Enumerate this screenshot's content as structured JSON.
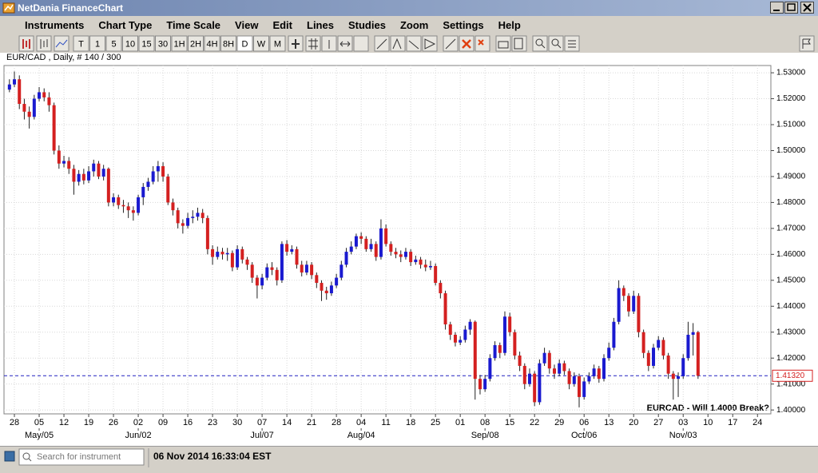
{
  "window": {
    "title": "NetDania FinanceChart"
  },
  "menu": [
    "Instruments",
    "Chart Type",
    "Time Scale",
    "View",
    "Edit",
    "Lines",
    "Studies",
    "Zoom",
    "Settings",
    "Help"
  ],
  "toolbar": {
    "buttons": [
      "T",
      "1",
      "5",
      "10",
      "15",
      "30",
      "1H",
      "2H",
      "4H",
      "8H",
      "D",
      "W",
      "M"
    ]
  },
  "chart_data": {
    "type": "candlestick",
    "header": "EUR/CAD , Daily, # 140 / 300",
    "annotation": "EURCAD - Will 1.4000 Break?",
    "up_color": "#1a1ad0",
    "down_color": "#d42020",
    "grid": true,
    "last_price": {
      "value": 1.4132,
      "label": "1.41320"
    },
    "last_price_color": "#2020c0",
    "ylim": [
      1.3985,
      1.5328
    ],
    "yticks": [
      {
        "value": 1.4,
        "label": "1.40000"
      },
      {
        "value": 1.41,
        "label": "1.41000"
      },
      {
        "value": 1.42,
        "label": "1.42000"
      },
      {
        "value": 1.43,
        "label": "1.43000"
      },
      {
        "value": 1.44,
        "label": "1.44000"
      },
      {
        "value": 1.45,
        "label": "1.45000"
      },
      {
        "value": 1.46,
        "label": "1.46000"
      },
      {
        "value": 1.47,
        "label": "1.47000"
      },
      {
        "value": 1.48,
        "label": "1.48000"
      },
      {
        "value": 1.49,
        "label": "1.49000"
      },
      {
        "value": 1.5,
        "label": "1.50000"
      },
      {
        "value": 1.51,
        "label": "1.51000"
      },
      {
        "value": 1.52,
        "label": "1.52000"
      },
      {
        "value": 1.53,
        "label": "1.53000"
      }
    ],
    "xlim": [
      -1.1,
      153.7
    ],
    "xticks": [
      {
        "value": 1,
        "label": "28"
      },
      {
        "value": 6,
        "label": "05"
      },
      {
        "value": 11,
        "label": "12"
      },
      {
        "value": 16,
        "label": "19"
      },
      {
        "value": 21,
        "label": "26"
      },
      {
        "value": 26,
        "label": "02"
      },
      {
        "value": 31,
        "label": "09"
      },
      {
        "value": 36,
        "label": "16"
      },
      {
        "value": 41,
        "label": "23"
      },
      {
        "value": 46,
        "label": "30"
      },
      {
        "value": 51,
        "label": "07"
      },
      {
        "value": 56,
        "label": "14"
      },
      {
        "value": 61,
        "label": "21"
      },
      {
        "value": 66,
        "label": "28"
      },
      {
        "value": 71,
        "label": "04"
      },
      {
        "value": 76,
        "label": "11"
      },
      {
        "value": 81,
        "label": "18"
      },
      {
        "value": 86,
        "label": "25"
      },
      {
        "value": 91,
        "label": "01"
      },
      {
        "value": 96,
        "label": "08"
      },
      {
        "value": 101,
        "label": "15"
      },
      {
        "value": 106,
        "label": "22"
      },
      {
        "value": 111,
        "label": "29"
      },
      {
        "value": 116,
        "label": "06"
      },
      {
        "value": 121,
        "label": "13"
      },
      {
        "value": 126,
        "label": "20"
      },
      {
        "value": 131,
        "label": "27"
      },
      {
        "value": 136,
        "label": "03"
      },
      {
        "value": 141,
        "label": "10"
      },
      {
        "value": 146,
        "label": "17"
      },
      {
        "value": 151,
        "label": "24"
      }
    ],
    "month_ticks": [
      {
        "value": 6,
        "label": "May/05"
      },
      {
        "value": 26,
        "label": "Jun/02"
      },
      {
        "value": 51,
        "label": "Jul/07"
      },
      {
        "value": 71,
        "label": "Aug/04"
      },
      {
        "value": 96,
        "label": "Sep/08"
      },
      {
        "value": 116,
        "label": "Oct/06"
      },
      {
        "value": 136,
        "label": "Nov/03"
      }
    ],
    "candles": [
      [
        1.5235,
        1.5275,
        1.5225,
        1.5255
      ],
      [
        1.5255,
        1.5305,
        1.5245,
        1.5275
      ],
      [
        1.5275,
        1.529,
        1.516,
        1.518
      ],
      [
        1.518,
        1.52,
        1.512,
        1.515
      ],
      [
        1.515,
        1.517,
        1.5085,
        1.513
      ],
      [
        1.513,
        1.5215,
        1.512,
        1.52
      ],
      [
        1.52,
        1.5245,
        1.519,
        1.5225
      ],
      [
        1.5225,
        1.524,
        1.519,
        1.5205
      ],
      [
        1.5205,
        1.5225,
        1.515,
        1.5175
      ],
      [
        1.5175,
        1.5185,
        1.4985,
        1.5
      ],
      [
        1.5,
        1.502,
        1.493,
        1.495
      ],
      [
        1.495,
        1.498,
        1.4935,
        1.496
      ],
      [
        1.496,
        1.4975,
        1.491,
        1.493
      ],
      [
        1.493,
        1.4945,
        1.483,
        1.488
      ],
      [
        1.488,
        1.4925,
        1.4865,
        1.491
      ],
      [
        1.491,
        1.493,
        1.487,
        1.4885
      ],
      [
        1.4885,
        1.494,
        1.4875,
        1.492
      ],
      [
        1.492,
        1.4965,
        1.49,
        1.495
      ],
      [
        1.495,
        1.496,
        1.489,
        1.49
      ],
      [
        1.49,
        1.4945,
        1.4885,
        1.493
      ],
      [
        1.493,
        1.4935,
        1.4785,
        1.48
      ],
      [
        1.48,
        1.4835,
        1.4785,
        1.482
      ],
      [
        1.482,
        1.483,
        1.4775,
        1.479
      ],
      [
        1.479,
        1.481,
        1.476,
        1.4785
      ],
      [
        1.4785,
        1.48,
        1.474,
        1.477
      ],
      [
        1.477,
        1.4785,
        1.473,
        1.476
      ],
      [
        1.476,
        1.483,
        1.475,
        1.482
      ],
      [
        1.482,
        1.4875,
        1.479,
        1.486
      ],
      [
        1.486,
        1.4895,
        1.4845,
        1.488
      ],
      [
        1.488,
        1.494,
        1.487,
        1.492
      ],
      [
        1.492,
        1.496,
        1.488,
        1.494
      ],
      [
        1.494,
        1.4955,
        1.488,
        1.49
      ],
      [
        1.49,
        1.491,
        1.479,
        1.48
      ],
      [
        1.48,
        1.4815,
        1.475,
        1.477
      ],
      [
        1.477,
        1.478,
        1.47,
        1.472
      ],
      [
        1.472,
        1.4735,
        1.468,
        1.471
      ],
      [
        1.471,
        1.476,
        1.47,
        1.474
      ],
      [
        1.474,
        1.477,
        1.472,
        1.4745
      ],
      [
        1.4745,
        1.478,
        1.473,
        1.476
      ],
      [
        1.476,
        1.4775,
        1.472,
        1.474
      ],
      [
        1.474,
        1.475,
        1.46,
        1.462
      ],
      [
        1.462,
        1.4635,
        1.456,
        1.459
      ],
      [
        1.459,
        1.463,
        1.458,
        1.461
      ],
      [
        1.461,
        1.4625,
        1.458,
        1.46
      ],
      [
        1.46,
        1.4625,
        1.4575,
        1.4605
      ],
      [
        1.4605,
        1.4615,
        1.4535,
        1.455
      ],
      [
        1.455,
        1.4635,
        1.454,
        1.462
      ],
      [
        1.462,
        1.463,
        1.4565,
        1.458
      ],
      [
        1.458,
        1.459,
        1.454,
        1.456
      ],
      [
        1.456,
        1.457,
        1.449,
        1.451
      ],
      [
        1.451,
        1.452,
        1.443,
        1.448
      ],
      [
        1.448,
        1.4525,
        1.4465,
        1.451
      ],
      [
        1.451,
        1.4565,
        1.45,
        1.455
      ],
      [
        1.455,
        1.457,
        1.452,
        1.454
      ],
      [
        1.454,
        1.455,
        1.448,
        1.45
      ],
      [
        1.45,
        1.465,
        1.449,
        1.464
      ],
      [
        1.464,
        1.4655,
        1.4595,
        1.461
      ],
      [
        1.461,
        1.4635,
        1.46,
        1.462
      ],
      [
        1.462,
        1.463,
        1.4545,
        1.456
      ],
      [
        1.456,
        1.4575,
        1.4515,
        1.453
      ],
      [
        1.453,
        1.4575,
        1.452,
        1.456
      ],
      [
        1.456,
        1.457,
        1.4505,
        1.452
      ],
      [
        1.452,
        1.453,
        1.447,
        1.449
      ],
      [
        1.449,
        1.45,
        1.442,
        1.446
      ],
      [
        1.446,
        1.4475,
        1.4425,
        1.445
      ],
      [
        1.445,
        1.4495,
        1.444,
        1.448
      ],
      [
        1.448,
        1.4525,
        1.447,
        1.451
      ],
      [
        1.451,
        1.4575,
        1.45,
        1.456
      ],
      [
        1.456,
        1.4625,
        1.455,
        1.461
      ],
      [
        1.461,
        1.465,
        1.46,
        1.463
      ],
      [
        1.463,
        1.468,
        1.462,
        1.467
      ],
      [
        1.467,
        1.4685,
        1.464,
        1.466
      ],
      [
        1.466,
        1.467,
        1.461,
        1.462
      ],
      [
        1.462,
        1.466,
        1.461,
        1.464
      ],
      [
        1.464,
        1.465,
        1.4575,
        1.459
      ],
      [
        1.459,
        1.4735,
        1.458,
        1.47
      ],
      [
        1.47,
        1.4715,
        1.463,
        1.464
      ],
      [
        1.464,
        1.465,
        1.4595,
        1.461
      ],
      [
        1.461,
        1.4625,
        1.4585,
        1.46
      ],
      [
        1.46,
        1.4615,
        1.457,
        1.459
      ],
      [
        1.459,
        1.4625,
        1.458,
        1.461
      ],
      [
        1.461,
        1.462,
        1.4555,
        1.457
      ],
      [
        1.457,
        1.4595,
        1.456,
        1.458
      ],
      [
        1.458,
        1.459,
        1.4545,
        1.456
      ],
      [
        1.456,
        1.458,
        1.4535,
        1.455
      ],
      [
        1.455,
        1.4575,
        1.454,
        1.4555
      ],
      [
        1.4555,
        1.4565,
        1.448,
        1.449
      ],
      [
        1.449,
        1.45,
        1.443,
        1.445
      ],
      [
        1.445,
        1.446,
        1.431,
        1.433
      ],
      [
        1.433,
        1.434,
        1.427,
        1.429
      ],
      [
        1.429,
        1.43,
        1.4245,
        1.426
      ],
      [
        1.426,
        1.4285,
        1.425,
        1.427
      ],
      [
        1.427,
        1.4325,
        1.426,
        1.431
      ],
      [
        1.431,
        1.435,
        1.429,
        1.434
      ],
      [
        1.434,
        1.4345,
        1.404,
        1.412
      ],
      [
        1.412,
        1.4135,
        1.406,
        1.408
      ],
      [
        1.408,
        1.4135,
        1.407,
        1.412
      ],
      [
        1.412,
        1.4215,
        1.411,
        1.42
      ],
      [
        1.42,
        1.4265,
        1.419,
        1.425
      ],
      [
        1.425,
        1.426,
        1.42,
        1.422
      ],
      [
        1.422,
        1.438,
        1.421,
        1.436
      ],
      [
        1.436,
        1.4375,
        1.4285,
        1.43
      ],
      [
        1.43,
        1.431,
        1.4195,
        1.421
      ],
      [
        1.421,
        1.4225,
        1.415,
        1.417
      ],
      [
        1.417,
        1.418,
        1.408,
        1.41
      ],
      [
        1.41,
        1.416,
        1.409,
        1.414
      ],
      [
        1.414,
        1.415,
        1.4015,
        1.403
      ],
      [
        1.403,
        1.4195,
        1.402,
        1.418
      ],
      [
        1.418,
        1.424,
        1.417,
        1.422
      ],
      [
        1.422,
        1.423,
        1.414,
        1.416
      ],
      [
        1.416,
        1.4175,
        1.412,
        1.414
      ],
      [
        1.414,
        1.4195,
        1.413,
        1.418
      ],
      [
        1.418,
        1.419,
        1.4135,
        1.415
      ],
      [
        1.415,
        1.416,
        1.408,
        1.41
      ],
      [
        1.41,
        1.4145,
        1.409,
        1.413
      ],
      [
        1.413,
        1.414,
        1.401,
        1.405
      ],
      [
        1.405,
        1.4125,
        1.404,
        1.411
      ],
      [
        1.411,
        1.4145,
        1.41,
        1.413
      ],
      [
        1.413,
        1.4175,
        1.412,
        1.416
      ],
      [
        1.416,
        1.417,
        1.4105,
        1.412
      ],
      [
        1.412,
        1.4215,
        1.411,
        1.42
      ],
      [
        1.42,
        1.426,
        1.419,
        1.424
      ],
      [
        1.424,
        1.4355,
        1.423,
        1.434
      ],
      [
        1.434,
        1.45,
        1.433,
        1.447
      ],
      [
        1.447,
        1.448,
        1.442,
        1.444
      ],
      [
        1.444,
        1.445,
        1.436,
        1.438
      ],
      [
        1.438,
        1.446,
        1.437,
        1.444
      ],
      [
        1.444,
        1.445,
        1.428,
        1.43
      ],
      [
        1.43,
        1.431,
        1.42,
        1.422
      ],
      [
        1.422,
        1.423,
        1.415,
        1.417
      ],
      [
        1.417,
        1.4255,
        1.416,
        1.424
      ],
      [
        1.424,
        1.4285,
        1.423,
        1.427
      ],
      [
        1.427,
        1.428,
        1.4195,
        1.421
      ],
      [
        1.421,
        1.422,
        1.412,
        1.414
      ],
      [
        1.414,
        1.415,
        1.404,
        1.412
      ],
      [
        1.412,
        1.4145,
        1.405,
        1.413
      ],
      [
        1.413,
        1.4215,
        1.412,
        1.42
      ],
      [
        1.42,
        1.434,
        1.419,
        1.429
      ],
      [
        1.429,
        1.4335,
        1.421,
        1.43
      ],
      [
        1.43,
        1.4305,
        1.412,
        1.4132
      ]
    ]
  },
  "status": {
    "search_placeholder": "Search for instrument",
    "datetime": "06 Nov 2014 16:33:04 EST"
  }
}
